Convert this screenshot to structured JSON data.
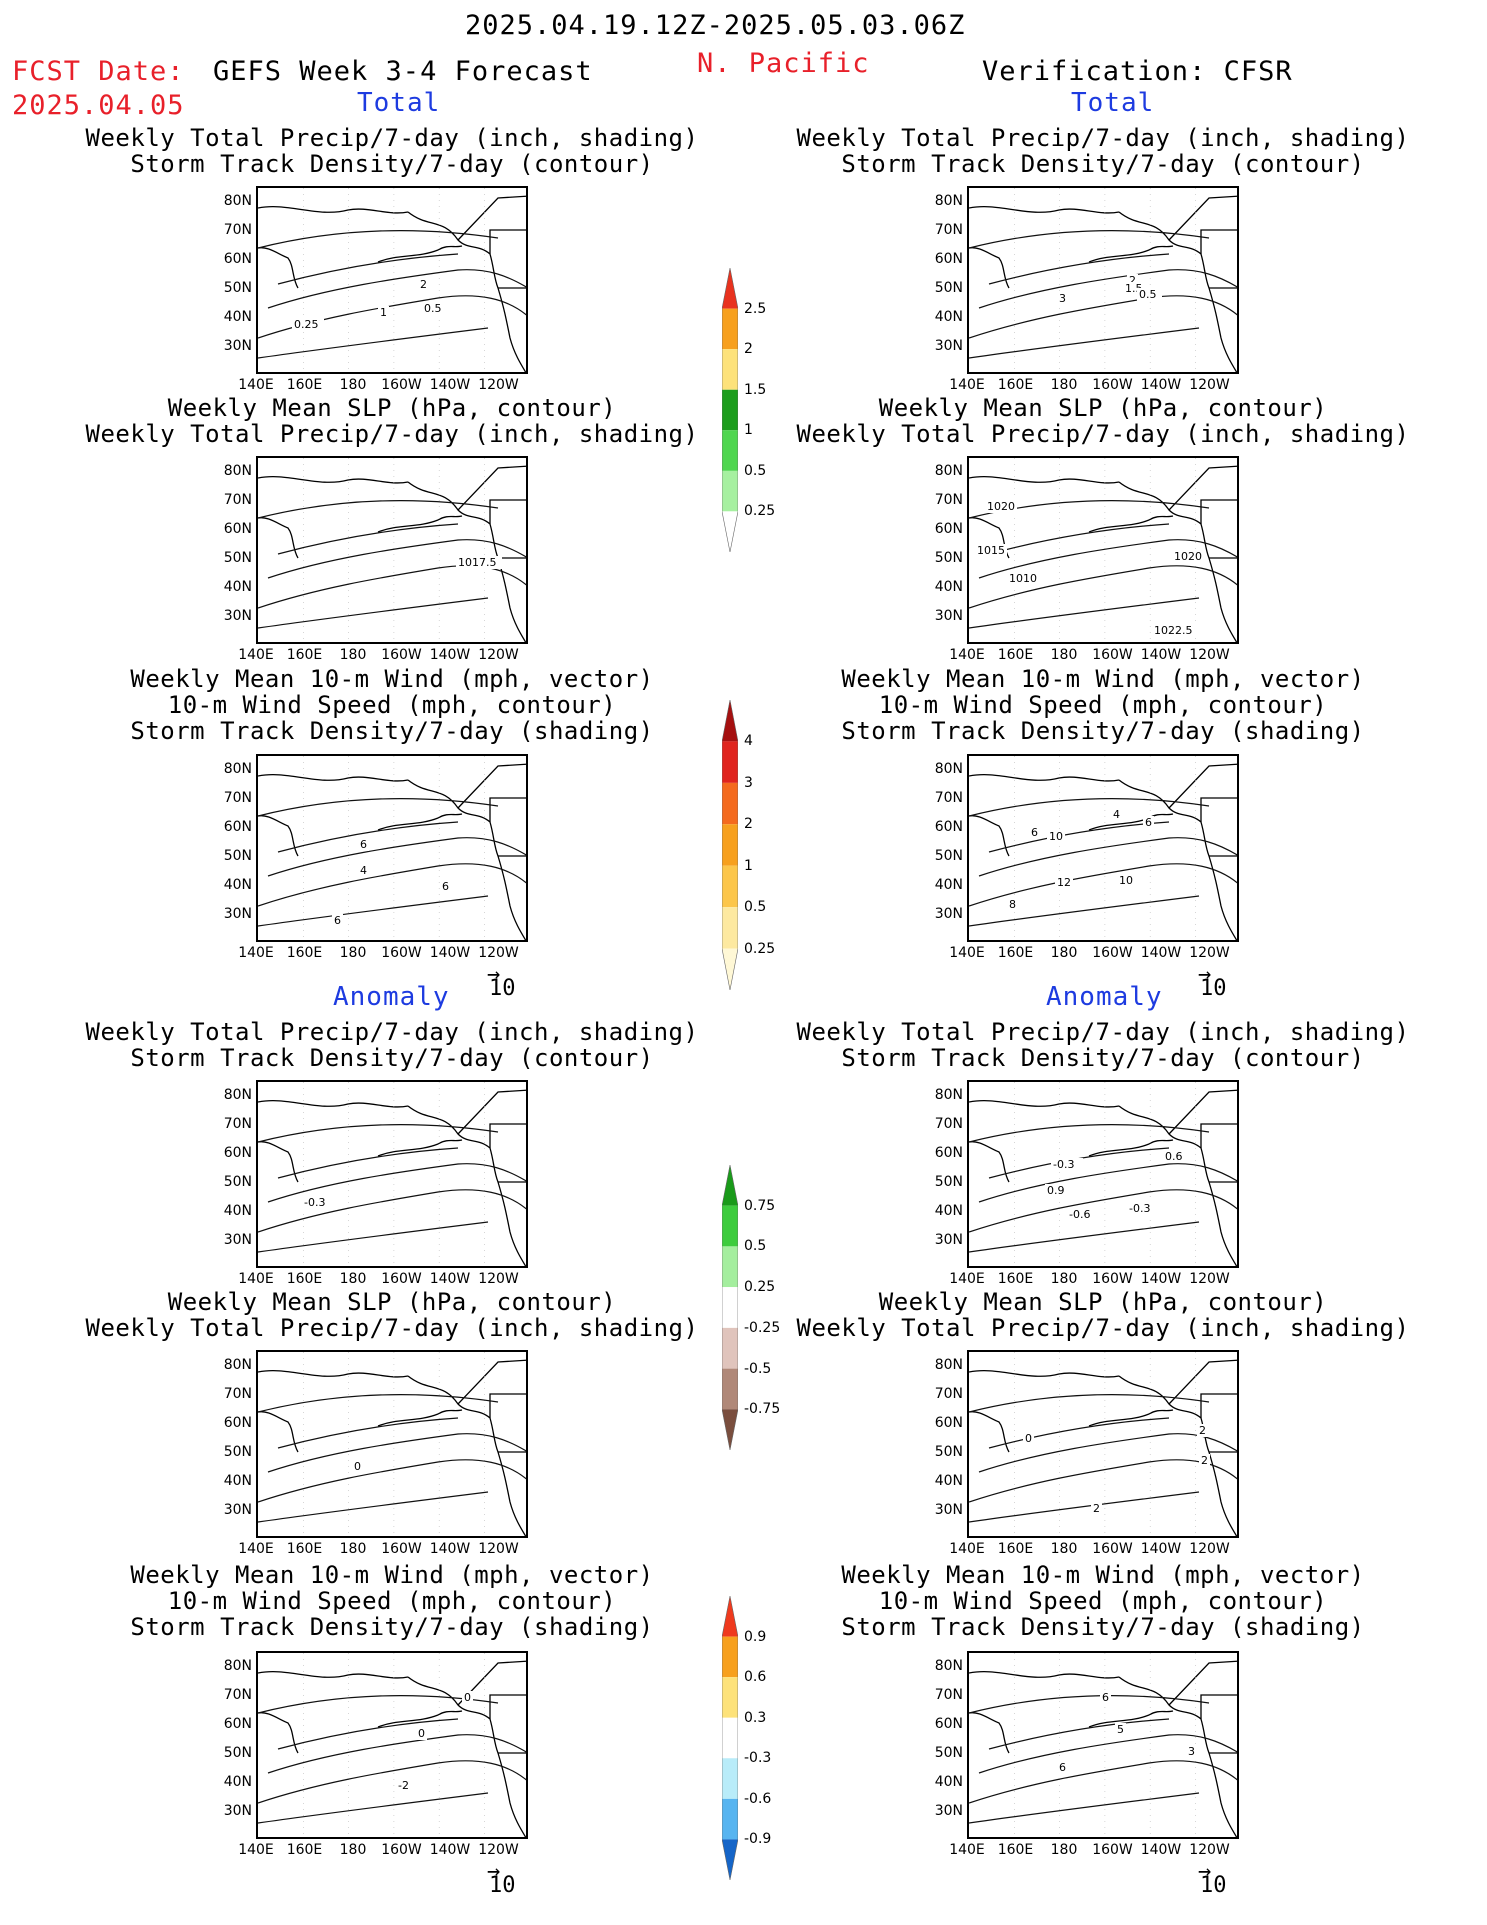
{
  "header": {
    "date_range": "2025.04.19.12Z-2025.05.03.06Z",
    "fcst_label": "FCST Date:",
    "fcst_date": "2025.04.05",
    "product": "GEFS Week 3-4 Forecast",
    "region": "N. Pacific",
    "verification": "Verification: CFSR"
  },
  "sections": {
    "total_left": "Total",
    "total_right": "Total",
    "anomaly_left": "Anomaly",
    "anomaly_right": "Anomaly"
  },
  "panel_titles": {
    "precip_storm": "Weekly Total Precip/7-day (inch, shading)\nStorm Track Density/7-day (contour)",
    "slp_precip": "Weekly Mean SLP (hPa, contour)\nWeekly Total Precip/7-day (inch, shading)",
    "wind_storm": "Weekly Mean 10-m Wind (mph, vector)\n10-m Wind Speed (mph, contour)\nStorm Track Density/7-day (shading)"
  },
  "axes": {
    "lat_ticks": [
      "80N",
      "70N",
      "60N",
      "50N",
      "40N",
      "30N"
    ],
    "lon_ticks": [
      "140E",
      "160E",
      "180",
      "160W",
      "140W",
      "120W"
    ]
  },
  "vector_ref": "10",
  "colorbars": {
    "precip_total": {
      "labels": [
        "2.5",
        "2",
        "1.5",
        "1",
        "0.5",
        "0.25"
      ],
      "colors": [
        "#e8321e",
        "#f7a01e",
        "#fde27a",
        "#1d9d1d",
        "#4fd64f",
        "#a6f0a0",
        "#ffffff"
      ]
    },
    "storm_total": {
      "labels": [
        "4",
        "3",
        "2",
        "1",
        "0.5",
        "0.25"
      ],
      "colors": [
        "#a51010",
        "#e0241e",
        "#f46a1e",
        "#f7a01e",
        "#fcc64a",
        "#fde9a0",
        "#fff8d6"
      ]
    },
    "precip_anom": {
      "labels": [
        "0.75",
        "0.5",
        "0.25",
        "-0.25",
        "-0.5",
        "-0.75"
      ],
      "colors": [
        "#1a9a1a",
        "#3dcc3d",
        "#a4ee9e",
        "#ffffff",
        "#e0c4bc",
        "#b08878",
        "#7a4e3e"
      ]
    },
    "storm_anom": {
      "labels": [
        "0.9",
        "0.6",
        "0.3",
        "-0.3",
        "-0.6",
        "-0.9"
      ],
      "colors": [
        "#ef3a1e",
        "#f7a01e",
        "#fde27a",
        "#ffffff",
        "#b8ecf9",
        "#56b4f0",
        "#1565c8"
      ]
    }
  },
  "panel_labels": {
    "t_precip_left": [
      "2",
      "1",
      "0.5",
      "0.25"
    ],
    "t_precip_right": [
      "3",
      "2",
      "1.5",
      "0.5"
    ],
    "t_slp_left": [
      "1017.5"
    ],
    "t_slp_right": [
      "1020",
      "1015",
      "1010",
      "1020",
      "1022.5"
    ],
    "t_wind_left": [
      "4",
      "6",
      "6",
      "6"
    ],
    "t_wind_right": [
      "6",
      "10",
      "4",
      "6",
      "12",
      "10",
      "8"
    ],
    "a_precip_left": [
      "-0.3"
    ],
    "a_precip_right": [
      "-0.3",
      "0.6",
      "0.9",
      "-0.6",
      "-0.3"
    ],
    "a_slp_left": [
      "0"
    ],
    "a_slp_right": [
      "0",
      "2",
      "2",
      "2"
    ],
    "a_wind_left": [
      "0",
      "0",
      "-2"
    ],
    "a_wind_right": [
      "6",
      "5",
      "3",
      "6"
    ]
  }
}
